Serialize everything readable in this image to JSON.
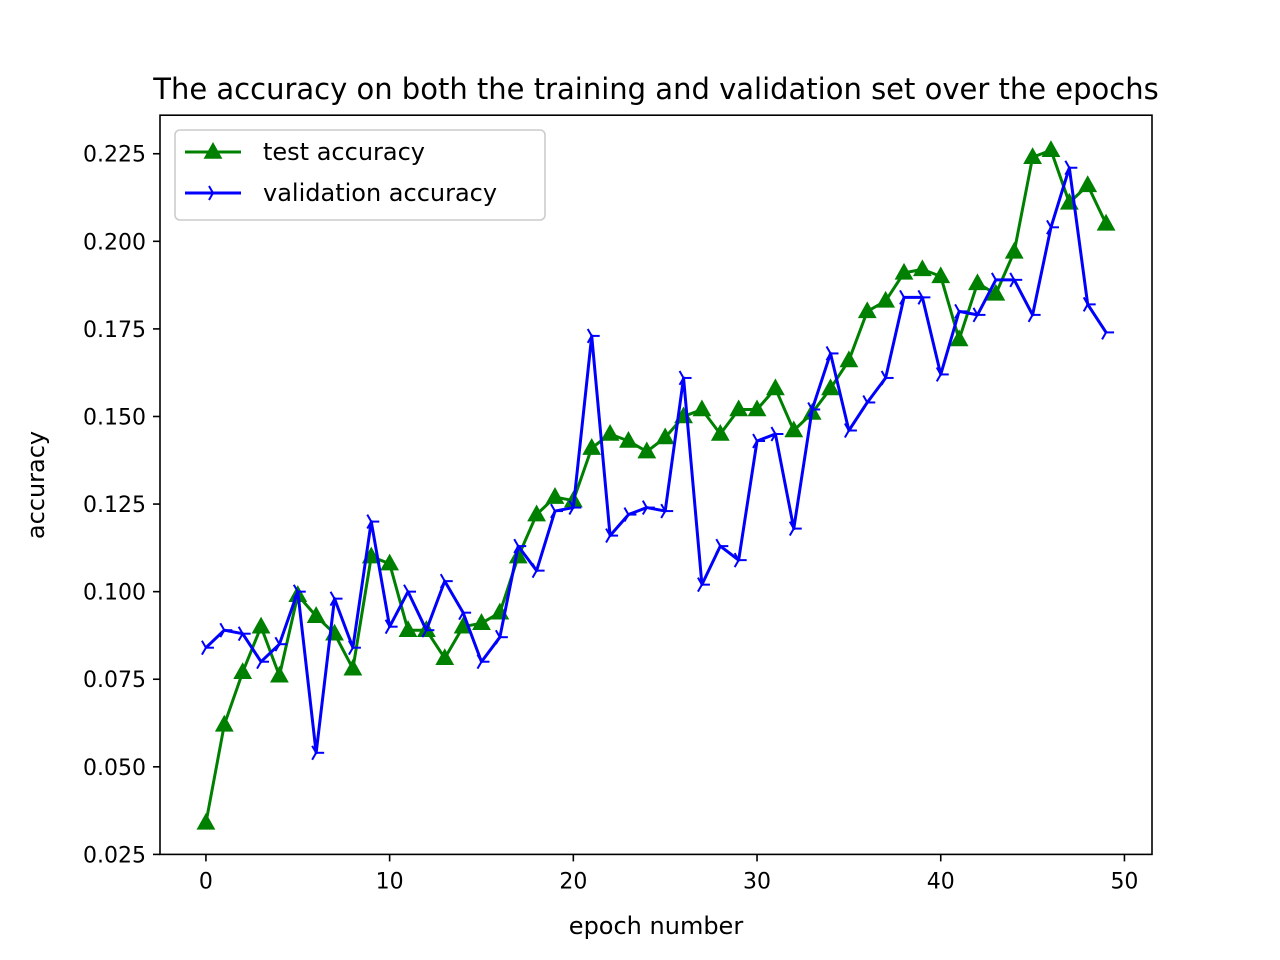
{
  "chart_data": {
    "type": "line",
    "title": "The accuracy on both the training and validation set over the epochs",
    "xlabel": "epoch number",
    "ylabel": "accuracy",
    "xlim": [
      -2.5,
      51.5
    ],
    "ylim": [
      0.025,
      0.236
    ],
    "xticks": [
      0,
      10,
      20,
      30,
      40,
      50
    ],
    "yticks": [
      0.025,
      0.05,
      0.075,
      0.1,
      0.125,
      0.15,
      0.175,
      0.2,
      0.225
    ],
    "xtick_labels": [
      "0",
      "10",
      "20",
      "30",
      "40",
      "50"
    ],
    "ytick_labels": [
      "0.025",
      "0.050",
      "0.075",
      "0.100",
      "0.125",
      "0.150",
      "0.175",
      "0.200",
      "0.225"
    ],
    "grid": false,
    "legend_position": "upper-left",
    "x": [
      0,
      1,
      2,
      3,
      4,
      5,
      6,
      7,
      8,
      9,
      10,
      11,
      12,
      13,
      14,
      15,
      16,
      17,
      18,
      19,
      20,
      21,
      22,
      23,
      24,
      25,
      26,
      27,
      28,
      29,
      30,
      31,
      32,
      33,
      34,
      35,
      36,
      37,
      38,
      39,
      40,
      41,
      42,
      43,
      44,
      45,
      46,
      47,
      48,
      49
    ],
    "series": [
      {
        "name": "test accuracy",
        "color": "#008000",
        "marker": "triangle",
        "values": [
          0.034,
          0.062,
          0.077,
          0.09,
          0.076,
          0.099,
          0.093,
          0.088,
          0.078,
          0.11,
          0.108,
          0.089,
          0.089,
          0.081,
          0.09,
          0.091,
          0.094,
          0.11,
          0.122,
          0.127,
          0.126,
          0.141,
          0.145,
          0.143,
          0.14,
          0.144,
          0.15,
          0.152,
          0.145,
          0.152,
          0.152,
          0.158,
          0.146,
          0.151,
          0.158,
          0.166,
          0.18,
          0.183,
          0.191,
          0.192,
          0.19,
          0.172,
          0.188,
          0.185,
          0.197,
          0.224,
          0.226,
          0.211,
          0.216,
          0.205
        ]
      },
      {
        "name": "validation accuracy",
        "color": "#0000ff",
        "marker": "tri_right",
        "values": [
          0.084,
          0.089,
          0.088,
          0.08,
          0.085,
          0.1,
          0.054,
          0.098,
          0.084,
          0.12,
          0.09,
          0.1,
          0.089,
          0.103,
          0.094,
          0.08,
          0.087,
          0.113,
          0.106,
          0.123,
          0.124,
          0.173,
          0.116,
          0.122,
          0.124,
          0.123,
          0.161,
          0.102,
          0.113,
          0.109,
          0.143,
          0.145,
          0.118,
          0.152,
          0.168,
          0.146,
          0.154,
          0.161,
          0.184,
          0.184,
          0.162,
          0.18,
          0.179,
          0.189,
          0.189,
          0.179,
          0.204,
          0.221,
          0.182,
          0.174
        ]
      }
    ]
  }
}
